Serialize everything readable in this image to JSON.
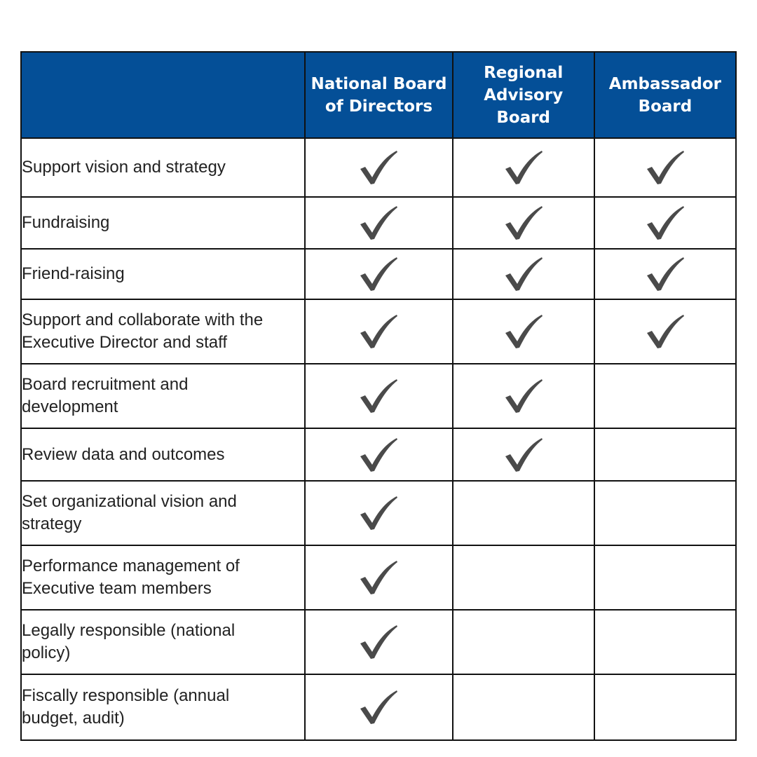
{
  "table": {
    "corner_label": "",
    "columns": [
      {
        "label": "National Board\nof Directors"
      },
      {
        "label": "Regional\nAdvisory\nBoard"
      },
      {
        "label": "Ambassador\nBoard"
      }
    ],
    "rows": [
      {
        "label": "Support vision and strategy",
        "checks": [
          true,
          true,
          true
        ]
      },
      {
        "label": "Fundraising",
        "checks": [
          true,
          true,
          true
        ]
      },
      {
        "label": "Friend-raising",
        "checks": [
          true,
          true,
          true
        ]
      },
      {
        "label": "Support and collaborate with the\nExecutive Director and staff",
        "checks": [
          true,
          true,
          true
        ]
      },
      {
        "label": "Board recruitment and\ndevelopment",
        "checks": [
          true,
          true,
          false
        ]
      },
      {
        "label": "Review data and outcomes",
        "checks": [
          true,
          true,
          false
        ]
      },
      {
        "label": "Set organizational vision and\nstrategy",
        "checks": [
          true,
          false,
          false
        ]
      },
      {
        "label": "Performance management of\nExecutive team members",
        "checks": [
          true,
          false,
          false
        ]
      },
      {
        "label": "Legally responsible (national\npolicy)",
        "checks": [
          true,
          false,
          false
        ]
      },
      {
        "label": "Fiscally responsible (annual\nbudget, audit)",
        "checks": [
          true,
          false,
          false
        ]
      }
    ]
  },
  "colors": {
    "header_bg": "#044f97",
    "header_text": "#ffffff",
    "check": "#4a4a4a",
    "border": "#111111"
  },
  "icons": {
    "check": "checkmark-icon"
  }
}
